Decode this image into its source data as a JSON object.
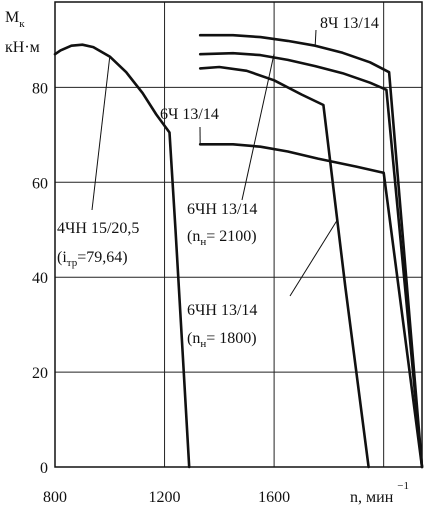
{
  "chart_data": {
    "type": "line",
    "title": "",
    "xlabel": "n, мин",
    "xlabel_sup": "−1",
    "ylabel": "M",
    "ylabel_sub": "к",
    "ylabel_unit": "кН·м",
    "xlim": [
      800,
      2140
    ],
    "ylim": [
      0,
      98
    ],
    "x_ticks": [
      800,
      1200,
      1600
    ],
    "y_ticks": [
      0,
      20,
      40,
      60,
      80
    ],
    "grid": true,
    "x_gridlines": [
      1200,
      1600,
      2000
    ],
    "y_gridlines": [
      20,
      40,
      60,
      80
    ],
    "legend": "none",
    "series": [
      {
        "points": [
          [
            800,
            87
          ],
          [
            820,
            87.8
          ],
          [
            860,
            88.8
          ],
          [
            900,
            89
          ],
          [
            940,
            88.5
          ],
          [
            1000,
            86.5
          ],
          [
            1060,
            83.2
          ],
          [
            1120,
            78.8
          ],
          [
            1170,
            74.3
          ],
          [
            1218,
            70.5
          ],
          [
            1240,
            50
          ],
          [
            1265,
            25
          ],
          [
            1290,
            0
          ]
        ]
      },
      {
        "points": [
          [
            1330,
            68
          ],
          [
            1450,
            68
          ],
          [
            1550,
            67.5
          ],
          [
            1650,
            66.5
          ],
          [
            1760,
            65
          ],
          [
            1900,
            63.3
          ],
          [
            2000,
            62
          ],
          [
            2140,
            0
          ]
        ]
      },
      {
        "points": [
          [
            1330,
            84
          ],
          [
            1400,
            84.3
          ],
          [
            1500,
            83.5
          ],
          [
            1600,
            81.5
          ],
          [
            1700,
            78.5
          ],
          [
            1780,
            76.3
          ],
          [
            1860,
            38
          ],
          [
            1945,
            0
          ]
        ]
      },
      {
        "points": [
          [
            1330,
            87
          ],
          [
            1450,
            87.2
          ],
          [
            1550,
            86.8
          ],
          [
            1650,
            85.8
          ],
          [
            1750,
            84.5
          ],
          [
            1850,
            83
          ],
          [
            1950,
            81
          ],
          [
            2010,
            79.5
          ],
          [
            2140,
            0
          ]
        ]
      },
      {
        "points": [
          [
            1330,
            91
          ],
          [
            1450,
            91
          ],
          [
            1550,
            90.6
          ],
          [
            1650,
            89.8
          ],
          [
            1750,
            88.8
          ],
          [
            1850,
            87.3
          ],
          [
            1950,
            85.3
          ],
          [
            2020,
            83.2
          ],
          [
            2140,
            0
          ]
        ]
      }
    ],
    "annotations": {
      "engine_8ch": "8Ч 13/14",
      "engine_6ch": "6Ч 13/14",
      "engine_6chn_2100_name": "6ЧН 13/14",
      "engine_6chn_2100_speed_pre": "(n",
      "engine_6chn_2100_speed_sub": "н",
      "engine_6chn_2100_speed_post": "= 2100)",
      "engine_4chn_name": "4ЧН 15/20,5",
      "engine_4chn_ratio_pre": "(i",
      "engine_4chn_ratio_sub": "тр",
      "engine_4chn_ratio_post": "=79,64)",
      "engine_6chn_1800_name": "6ЧН 13/14",
      "engine_6chn_1800_speed_pre": "(n",
      "engine_6chn_1800_speed_sub": "н",
      "engine_6chn_1800_speed_post": "= 1800)"
    }
  }
}
